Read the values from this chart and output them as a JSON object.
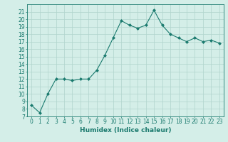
{
  "x": [
    0,
    1,
    2,
    3,
    4,
    5,
    6,
    7,
    8,
    9,
    10,
    11,
    12,
    13,
    14,
    15,
    16,
    17,
    18,
    19,
    20,
    21,
    22,
    23
  ],
  "y": [
    8.5,
    7.5,
    10,
    12,
    12,
    11.8,
    12,
    12,
    13.2,
    15.2,
    17.5,
    19.8,
    19.2,
    18.8,
    19.2,
    21.2,
    19.2,
    18,
    17.5,
    17,
    17.5,
    17,
    17.2,
    16.8
  ],
  "xlabel": "Humidex (Indice chaleur)",
  "ylabel": "",
  "ylim": [
    7,
    22
  ],
  "xlim": [
    -0.5,
    23.5
  ],
  "yticks": [
    7,
    8,
    9,
    10,
    11,
    12,
    13,
    14,
    15,
    16,
    17,
    18,
    19,
    20,
    21
  ],
  "xticks": [
    0,
    1,
    2,
    3,
    4,
    5,
    6,
    7,
    8,
    9,
    10,
    11,
    12,
    13,
    14,
    15,
    16,
    17,
    18,
    19,
    20,
    21,
    22,
    23
  ],
  "line_color": "#1a7a6e",
  "marker": "D",
  "marker_size": 2.0,
  "bg_color": "#d4eee8",
  "grid_color": "#b0d4cc",
  "label_fontsize": 6.5,
  "tick_fontsize": 5.5
}
